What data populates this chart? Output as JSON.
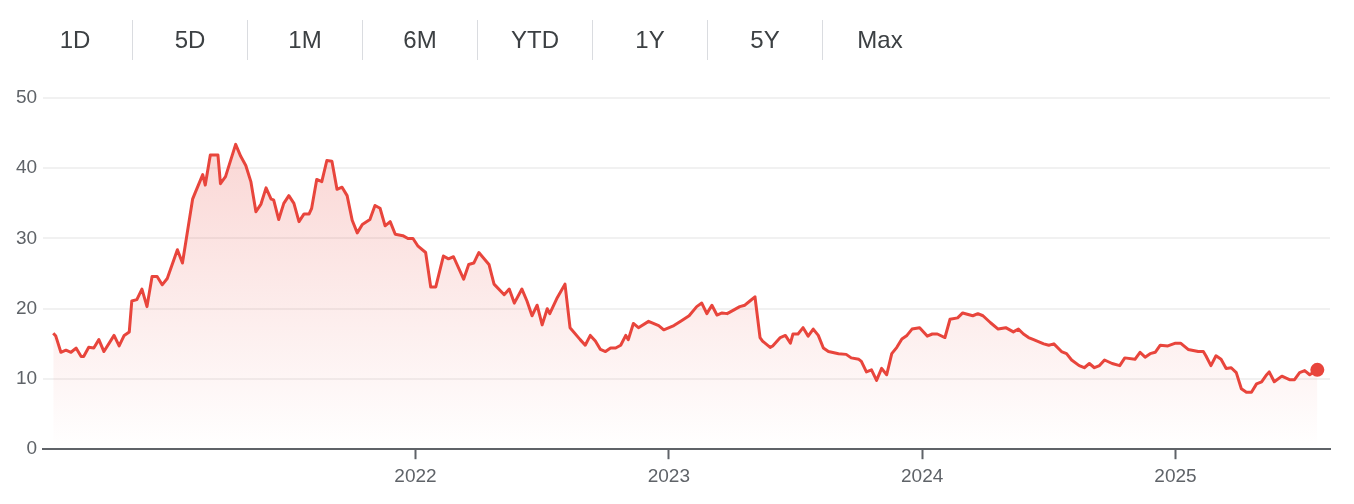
{
  "chart_data": {
    "type": "area",
    "annotations": [
      "1D",
      "5D",
      "1M",
      "6M",
      "YTD",
      "1Y",
      "5Y",
      "Max"
    ],
    "xlim": [
      2020.53,
      2025.61
    ],
    "xticks": [
      2022,
      2023,
      2024,
      2025
    ],
    "ylim": [
      0,
      50
    ],
    "yticks": [
      0,
      10,
      20,
      30,
      40,
      50
    ],
    "grid": "y",
    "legend": false,
    "series": [
      {
        "color": "#e8453c",
        "x": [
          2020.57,
          2020.58,
          2020.6,
          2020.62,
          2020.64,
          2020.66,
          2020.68,
          2020.69,
          2020.71,
          2020.73,
          2020.75,
          2020.77,
          2020.81,
          2020.83,
          2020.85,
          2020.87,
          2020.88,
          2020.9,
          2020.92,
          2020.94,
          2020.96,
          2020.98,
          2021.0,
          2021.02,
          2021.06,
          2021.08,
          2021.12,
          2021.13,
          2021.16,
          2021.17,
          2021.19,
          2021.22,
          2021.23,
          2021.25,
          2021.29,
          2021.31,
          2021.33,
          2021.35,
          2021.37,
          2021.39,
          2021.41,
          2021.43,
          2021.44,
          2021.46,
          2021.48,
          2021.5,
          2021.52,
          2021.54,
          2021.56,
          2021.58,
          2021.59,
          2021.61,
          2021.63,
          2021.65,
          2021.67,
          2021.69,
          2021.71,
          2021.73,
          2021.75,
          2021.77,
          2021.79,
          2021.82,
          2021.84,
          2021.86,
          2021.88,
          2021.9,
          2021.92,
          2021.95,
          2021.97,
          2021.99,
          2022.01,
          2022.04,
          2022.06,
          2022.08,
          2022.11,
          2022.13,
          2022.15,
          2022.19,
          2022.21,
          2022.23,
          2022.25,
          2022.29,
          2022.31,
          2022.35,
          2022.37,
          2022.39,
          2022.42,
          2022.44,
          2022.46,
          2022.48,
          2022.5,
          2022.52,
          2022.53,
          2022.56,
          2022.59,
          2022.61,
          2022.65,
          2022.67,
          2022.69,
          2022.71,
          2022.73,
          2022.75,
          2022.77,
          2022.79,
          2022.81,
          2022.83,
          2022.84,
          2022.86,
          2022.88,
          2022.92,
          2022.96,
          2022.98,
          2023.02,
          2023.05,
          2023.08,
          2023.11,
          2023.13,
          2023.15,
          2023.17,
          2023.19,
          2023.21,
          2023.23,
          2023.25,
          2023.28,
          2023.3,
          2023.32,
          2023.34,
          2023.36,
          2023.37,
          2023.4,
          2023.41,
          2023.44,
          2023.46,
          2023.48,
          2023.49,
          2023.51,
          2023.53,
          2023.55,
          2023.57,
          2023.59,
          2023.61,
          2023.63,
          2023.67,
          2023.7,
          2023.72,
          2023.75,
          2023.76,
          2023.78,
          2023.8,
          2023.82,
          2023.84,
          2023.86,
          2023.88,
          2023.9,
          2023.92,
          2023.94,
          2023.96,
          2023.99,
          2024.02,
          2024.04,
          2024.06,
          2024.09,
          2024.11,
          2024.14,
          2024.16,
          2024.2,
          2024.22,
          2024.24,
          2024.27,
          2024.3,
          2024.33,
          2024.36,
          2024.38,
          2024.4,
          2024.42,
          2024.44,
          2024.48,
          2024.5,
          2024.52,
          2024.55,
          2024.57,
          2024.59,
          2024.62,
          2024.64,
          2024.66,
          2024.68,
          2024.7,
          2024.72,
          2024.75,
          2024.78,
          2024.8,
          2024.84,
          2024.86,
          2024.88,
          2024.9,
          2024.92,
          2024.94,
          2024.97,
          2025.0,
          2025.02,
          2025.05,
          2025.09,
          2025.11,
          2025.12,
          2025.14,
          2025.16,
          2025.18,
          2025.2,
          2025.22,
          2025.24,
          2025.26,
          2025.28,
          2025.3,
          2025.32,
          2025.34,
          2025.36,
          2025.37,
          2025.39,
          2025.42,
          2025.45,
          2025.47,
          2025.49,
          2025.51,
          2025.53,
          2025.56
        ],
        "values": [
          16.5,
          16.1,
          13.8,
          14.1,
          13.8,
          14.4,
          13.2,
          13.2,
          14.5,
          14.4,
          15.6,
          13.9,
          16.2,
          14.7,
          16.2,
          16.7,
          21.1,
          21.3,
          22.8,
          20.3,
          24.6,
          24.6,
          23.4,
          24.3,
          28.4,
          26.5,
          35.6,
          36.5,
          39.1,
          37.6,
          41.9,
          41.9,
          37.8,
          38.8,
          43.4,
          41.7,
          40.4,
          38.1,
          33.8,
          34.9,
          37.2,
          35.6,
          35.5,
          32.7,
          35,
          36.1,
          35,
          32.4,
          33.5,
          33.5,
          34.3,
          38.4,
          38.1,
          41.1,
          41,
          37,
          37.3,
          36.1,
          32.6,
          30.8,
          32,
          32.7,
          34.7,
          34.3,
          31.8,
          32.4,
          30.6,
          30.4,
          30,
          30,
          28.9,
          28,
          23.1,
          23.1,
          27.5,
          27.1,
          27.4,
          24.2,
          26.3,
          26.5,
          28,
          26.3,
          23.5,
          22,
          22.8,
          20.8,
          22.8,
          21.1,
          19,
          20.5,
          17.7,
          20,
          19.3,
          21.6,
          23.5,
          17.3,
          15.6,
          14.8,
          16.2,
          15.4,
          14.2,
          13.9,
          14.4,
          14.4,
          14.8,
          16.2,
          15.6,
          17.9,
          17.3,
          18.2,
          17.6,
          17,
          17.6,
          18.3,
          19,
          20.3,
          20.8,
          19.3,
          20.5,
          19.1,
          19.4,
          19.3,
          19.7,
          20.3,
          20.5,
          21.1,
          21.7,
          15.9,
          15.4,
          14.5,
          14.7,
          15.9,
          16.2,
          15.1,
          16.4,
          16.4,
          17.3,
          16.1,
          17.1,
          16.2,
          14.4,
          13.9,
          13.6,
          13.5,
          13,
          12.8,
          12.5,
          11,
          11.3,
          9.8,
          11.5,
          10.6,
          13.6,
          14.5,
          15.7,
          16.2,
          17.1,
          17.3,
          16.1,
          16.4,
          16.4,
          15.9,
          18.5,
          18.7,
          19.4,
          19,
          19.3,
          19,
          18,
          17.1,
          17.3,
          16.7,
          17.1,
          16.4,
          15.9,
          15.6,
          15,
          14.8,
          15,
          13.9,
          13.6,
          12.7,
          11.9,
          11.6,
          12.2,
          11.6,
          11.9,
          12.7,
          12.2,
          11.9,
          13,
          12.8,
          13.8,
          13.1,
          13.6,
          13.8,
          14.8,
          14.7,
          15.1,
          15.1,
          14.2,
          13.9,
          13.9,
          13.3,
          11.9,
          13.3,
          12.8,
          11.5,
          11.6,
          10.9,
          8.6,
          8.1,
          8.1,
          9.3,
          9.6,
          10.6,
          11,
          9.6,
          10.4,
          9.9,
          9.9,
          10.9,
          11.2,
          10.6,
          11.3
        ]
      }
    ]
  }
}
